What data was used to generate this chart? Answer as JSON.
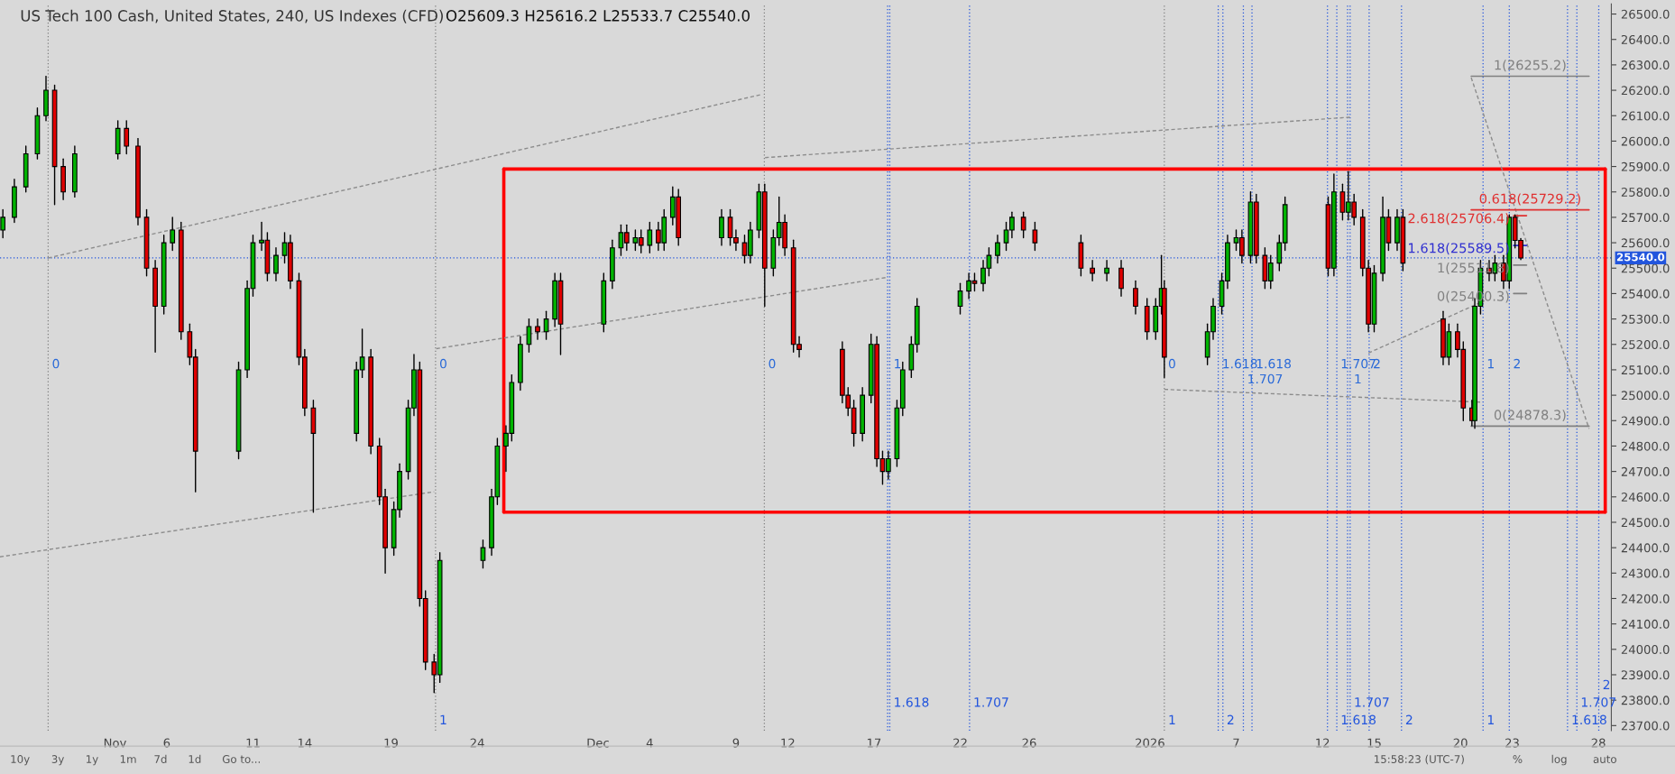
{
  "chart_data": {
    "type": "candlestick",
    "title": "US Tech 100 Cash, United States, 240, US Indexes (CFD)",
    "subtitle": "O25609.3 H25616.2 L25533.7 C25540.0",
    "x": [
      "2025-10-27T12:00",
      "2025-10-28T04:00",
      "2025-10-28T20:00",
      "2025-10-29T12:00",
      "2025-10-30T00:00",
      "2025-10-30T12:00",
      "2025-10-31T00:00",
      "2025-10-31T16:00",
      "2025-11-03T04:00",
      "2025-11-03T16:00",
      "2025-11-04T08:00",
      "2025-11-04T20:00",
      "2025-11-05T08:00",
      "2025-11-05T20:00",
      "2025-11-06T08:00",
      "2025-11-06T20:00",
      "2025-11-07T08:00",
      "2025-11-07T16:00",
      "2025-11-10T04:00",
      "2025-11-10T16:00",
      "2025-11-11T00:00",
      "2025-11-11T12:00",
      "2025-11-11T20:00",
      "2025-11-12T08:00",
      "2025-11-12T20:00",
      "2025-11-13T04:00",
      "2025-11-13T16:00",
      "2025-11-14T00:00",
      "2025-11-14T12:00",
      "2025-11-17T00:00",
      "2025-11-17T08:00",
      "2025-11-17T20:00",
      "2025-11-18T08:00",
      "2025-11-18T16:00",
      "2025-11-19T04:00",
      "2025-11-19T12:00",
      "2025-11-20T00:00",
      "2025-11-20T08:00",
      "2025-11-20T16:00",
      "2025-11-21T00:00",
      "2025-11-21T12:00",
      "2025-11-21T20:00",
      "2025-11-24T08:00",
      "2025-11-24T20:00",
      "2025-11-25T04:00",
      "2025-11-25T16:00",
      "2025-11-26T00:00",
      "2025-11-26T12:00",
      "2025-11-27T00:00",
      "2025-11-27T12:00",
      "2025-11-28T00:00",
      "2025-11-28T12:00",
      "2025-11-28T20:00",
      "2025-12-01T08:00",
      "2025-12-01T20:00",
      "2025-12-02T08:00",
      "2025-12-02T16:00",
      "2025-12-03T04:00",
      "2025-12-03T12:00",
      "2025-12-04T00:00",
      "2025-12-04T12:00",
      "2025-12-04T20:00",
      "2025-12-05T08:00",
      "2025-12-05T16:00",
      "2025-12-08T04:00",
      "2025-12-08T16:00",
      "2025-12-09T00:00",
      "2025-12-09T12:00",
      "2025-12-09T20:00",
      "2025-12-10T08:00",
      "2025-12-10T16:00",
      "2025-12-11T04:00",
      "2025-12-11T12:00",
      "2025-12-11T20:00",
      "2025-12-12T08:00",
      "2025-12-12T16:00",
      "2025-12-15T04:00",
      "2025-12-15T12:00",
      "2025-12-15T20:00",
      "2025-12-16T08:00",
      "2025-12-16T20:00",
      "2025-12-17T04:00",
      "2025-12-17T12:00",
      "2025-12-17T20:00",
      "2025-12-18T08:00",
      "2025-12-18T16:00",
      "2025-12-19T04:00",
      "2025-12-19T12:00",
      "2025-12-22T00:00",
      "2025-12-22T12:00",
      "2025-12-22T20:00",
      "2025-12-23T08:00",
      "2025-12-23T16:00",
      "2025-12-24T04:00",
      "2025-12-24T16:00",
      "2025-12-25T00:00",
      "2025-12-25T16:00",
      "2025-12-26T08:00",
      "2025-12-29T00:00",
      "2025-12-29T16:00",
      "2025-12-30T12:00",
      "2025-12-31T08:00",
      "2026-01-01T04:00",
      "2026-01-01T20:00",
      "2026-01-02T08:00",
      "2026-01-02T16:00",
      "2026-01-02T20:00",
      "2026-01-05T08:00",
      "2026-01-05T16:00",
      "2026-01-06T04:00",
      "2026-01-06T12:00",
      "2026-01-07T00:00",
      "2026-01-07T08:00",
      "2026-01-07T20:00",
      "2026-01-08T04:00",
      "2026-01-08T16:00",
      "2026-01-09T00:00",
      "2026-01-09T12:00",
      "2026-01-09T20:00",
      "2026-01-12T08:00",
      "2026-01-12T16:00",
      "2026-01-13T04:00",
      "2026-01-13T12:00",
      "2026-01-13T20:00",
      "2026-01-14T08:00",
      "2026-01-14T16:00",
      "2026-01-15T00:00",
      "2026-01-15T12:00",
      "2026-01-15T20:00",
      "2026-01-16T08:00",
      "2026-01-16T16:00",
      "2026-01-19T00:00",
      "2026-01-19T08:00",
      "2026-01-19T20:00",
      "2026-01-20T04:00",
      "2026-01-20T16:00",
      "2026-01-20T20:00",
      "2026-01-21T04:00",
      "2026-01-21T16:00",
      "2026-01-22T00:00",
      "2026-01-22T12:00",
      "2026-01-22T20:00",
      "2026-01-23T04:00",
      "2026-01-23T12:00"
    ],
    "ohlc": [
      [
        25650,
        25730,
        25620,
        25700
      ],
      [
        25700,
        25850,
        25680,
        25820
      ],
      [
        25820,
        25980,
        25800,
        25950
      ],
      [
        25950,
        26130,
        25930,
        26100
      ],
      [
        26100,
        26255,
        26080,
        26200
      ],
      [
        26200,
        26220,
        25750,
        25900
      ],
      [
        25900,
        25930,
        25770,
        25800
      ],
      [
        25800,
        25980,
        25780,
        25950
      ],
      [
        25950,
        26080,
        25930,
        26050
      ],
      [
        26050,
        26080,
        25950,
        25980
      ],
      [
        25980,
        26010,
        25670,
        25700
      ],
      [
        25700,
        25730,
        25470,
        25500
      ],
      [
        25500,
        25530,
        25170,
        25350
      ],
      [
        25350,
        25630,
        25320,
        25600
      ],
      [
        25600,
        25700,
        25570,
        25650
      ],
      [
        25650,
        25680,
        25220,
        25250
      ],
      [
        25250,
        25280,
        25120,
        25150
      ],
      [
        25150,
        25180,
        24620,
        24780
      ],
      [
        24780,
        25130,
        24750,
        25100
      ],
      [
        25100,
        25450,
        25070,
        25420
      ],
      [
        25420,
        25630,
        25390,
        25600
      ],
      [
        25600,
        25680,
        25570,
        25610
      ],
      [
        25610,
        25640,
        25450,
        25480
      ],
      [
        25480,
        25580,
        25450,
        25550
      ],
      [
        25550,
        25640,
        25520,
        25600
      ],
      [
        25600,
        25630,
        25420,
        25450
      ],
      [
        25450,
        25480,
        25120,
        25150
      ],
      [
        25150,
        25180,
        24920,
        24950
      ],
      [
        24950,
        24980,
        24540,
        24850
      ],
      [
        24850,
        25130,
        24820,
        25100
      ],
      [
        25100,
        25260,
        25070,
        25150
      ],
      [
        25150,
        25180,
        24770,
        24800
      ],
      [
        24800,
        24830,
        24570,
        24600
      ],
      [
        24600,
        24630,
        24300,
        24400
      ],
      [
        24400,
        24580,
        24370,
        24550
      ],
      [
        24550,
        24730,
        24520,
        24700
      ],
      [
        24700,
        24980,
        24670,
        24950
      ],
      [
        24950,
        25160,
        24920,
        25100
      ],
      [
        25100,
        25130,
        24170,
        24200
      ],
      [
        24200,
        24230,
        23920,
        23950
      ],
      [
        23950,
        23980,
        23830,
        23900
      ],
      [
        23900,
        24380,
        23870,
        24350
      ],
      [
        24350,
        24430,
        24320,
        24400
      ],
      [
        24400,
        24630,
        24370,
        24600
      ],
      [
        24600,
        24830,
        24570,
        24800
      ],
      [
        24800,
        24880,
        24700,
        24850
      ],
      [
        24850,
        25080,
        24820,
        25050
      ],
      [
        25050,
        25230,
        25020,
        25200
      ],
      [
        25200,
        25300,
        25170,
        25270
      ],
      [
        25270,
        25300,
        25220,
        25250
      ],
      [
        25250,
        25330,
        25220,
        25300
      ],
      [
        25300,
        25480,
        25270,
        25450
      ],
      [
        25450,
        25480,
        25160,
        25280
      ],
      [
        25280,
        25480,
        25250,
        25450
      ],
      [
        25450,
        25610,
        25420,
        25580
      ],
      [
        25580,
        25670,
        25550,
        25640
      ],
      [
        25640,
        25670,
        25570,
        25600
      ],
      [
        25600,
        25650,
        25570,
        25620
      ],
      [
        25620,
        25650,
        25560,
        25590
      ],
      [
        25590,
        25680,
        25560,
        25650
      ],
      [
        25650,
        25680,
        25570,
        25600
      ],
      [
        25600,
        25730,
        25570,
        25700
      ],
      [
        25700,
        25820,
        25670,
        25780
      ],
      [
        25780,
        25810,
        25590,
        25620
      ],
      [
        25620,
        25730,
        25590,
        25700
      ],
      [
        25700,
        25730,
        25590,
        25620
      ],
      [
        25620,
        25650,
        25570,
        25600
      ],
      [
        25600,
        25630,
        25520,
        25550
      ],
      [
        25550,
        25680,
        25520,
        25650
      ],
      [
        25650,
        25830,
        25620,
        25800
      ],
      [
        25800,
        25830,
        25350,
        25500
      ],
      [
        25500,
        25650,
        25470,
        25620
      ],
      [
        25620,
        25780,
        25590,
        25680
      ],
      [
        25680,
        25710,
        25550,
        25580
      ],
      [
        25580,
        25610,
        25170,
        25200
      ],
      [
        25200,
        25230,
        25150,
        25180
      ],
      [
        25180,
        25210,
        24970,
        25000
      ],
      [
        25000,
        25030,
        24920,
        24950
      ],
      [
        24950,
        24980,
        24800,
        24850
      ],
      [
        24850,
        25030,
        24820,
        25000
      ],
      [
        25000,
        25240,
        24970,
        25200
      ],
      [
        25200,
        25230,
        24720,
        24750
      ],
      [
        24750,
        24780,
        24650,
        24700
      ],
      [
        24700,
        24780,
        24670,
        24750
      ],
      [
        24750,
        24980,
        24720,
        24950
      ],
      [
        24950,
        25130,
        24920,
        25100
      ],
      [
        25100,
        25230,
        25070,
        25200
      ],
      [
        25200,
        25380,
        25170,
        25350
      ],
      [
        25350,
        25440,
        25320,
        25410
      ],
      [
        25410,
        25480,
        25380,
        25450
      ],
      [
        25450,
        25480,
        25410,
        25440
      ],
      [
        25440,
        25530,
        25410,
        25500
      ],
      [
        25500,
        25580,
        25470,
        25550
      ],
      [
        25550,
        25630,
        25520,
        25600
      ],
      [
        25600,
        25680,
        25570,
        25650
      ],
      [
        25650,
        25720,
        25620,
        25700
      ],
      [
        25700,
        25720,
        25620,
        25650
      ],
      [
        25650,
        25680,
        25570,
        25600
      ],
      [
        25600,
        25630,
        25470,
        25500
      ],
      [
        25500,
        25530,
        25450,
        25480
      ],
      [
        25480,
        25530,
        25450,
        25500
      ],
      [
        25500,
        25530,
        25390,
        25420
      ],
      [
        25420,
        25450,
        25320,
        25350
      ],
      [
        25350,
        25380,
        25220,
        25250
      ],
      [
        25250,
        25380,
        25220,
        25350
      ],
      [
        25350,
        25550,
        25320,
        25420
      ],
      [
        25420,
        25450,
        25070,
        25150
      ],
      [
        25150,
        25280,
        25120,
        25250
      ],
      [
        25250,
        25380,
        25220,
        25350
      ],
      [
        25350,
        25480,
        25320,
        25450
      ],
      [
        25450,
        25630,
        25420,
        25600
      ],
      [
        25600,
        25650,
        25570,
        25620
      ],
      [
        25620,
        25650,
        25520,
        25550
      ],
      [
        25550,
        25800,
        25520,
        25760
      ],
      [
        25760,
        25790,
        25520,
        25550
      ],
      [
        25550,
        25580,
        25420,
        25450
      ],
      [
        25450,
        25550,
        25420,
        25520
      ],
      [
        25520,
        25630,
        25490,
        25600
      ],
      [
        25600,
        25780,
        25570,
        25750
      ],
      [
        25750,
        25780,
        25470,
        25500
      ],
      [
        25500,
        25870,
        25470,
        25800
      ],
      [
        25800,
        25830,
        25690,
        25720
      ],
      [
        25720,
        25880,
        25690,
        25760
      ],
      [
        25760,
        25790,
        25670,
        25700
      ],
      [
        25700,
        25730,
        25470,
        25500
      ],
      [
        25500,
        25530,
        25250,
        25280
      ],
      [
        25280,
        25510,
        25250,
        25480
      ],
      [
        25480,
        25780,
        25450,
        25700
      ],
      [
        25700,
        25730,
        25570,
        25600
      ],
      [
        25600,
        25730,
        25570,
        25700
      ],
      [
        25700,
        25730,
        25490,
        25520
      ],
      [
        25300,
        25330,
        25120,
        25150
      ],
      [
        25150,
        25280,
        25120,
        25250
      ],
      [
        25250,
        25280,
        25150,
        25180
      ],
      [
        25180,
        25210,
        24900,
        24950
      ],
      [
        24950,
        24980,
        24880,
        24900
      ],
      [
        24900,
        25380,
        24870,
        25350
      ],
      [
        25350,
        25530,
        25320,
        25500
      ],
      [
        25500,
        25530,
        25450,
        25480
      ],
      [
        25480,
        25550,
        25450,
        25520
      ],
      [
        25520,
        25550,
        25420,
        25450
      ],
      [
        25450,
        25710,
        25420,
        25700
      ],
      [
        25700,
        25710,
        25580,
        25609.3
      ],
      [
        25609.3,
        25616.2,
        25533.7,
        25540.0
      ]
    ],
    "series": [
      {
        "type": "line",
        "color": "#ff0000",
        "line_style": "solid",
        "x": [
          "2025-11-25T13:00",
          "2026-01-28T09:30"
        ],
        "values": [
          25890,
          25890
        ]
      },
      {
        "type": "line",
        "color": "#ff0000",
        "line_style": "solid",
        "x": [
          "2025-11-25T13:00",
          "2026-01-28T09:30"
        ],
        "values": [
          24540,
          24540
        ]
      },
      {
        "type": "line",
        "color": "#ff0000",
        "line_style": "solid",
        "x": [
          "2025-11-25T13:00",
          "2025-11-25T13:00"
        ],
        "values": [
          24540,
          25890
        ]
      },
      {
        "type": "line",
        "color": "#ff0000",
        "line_style": "solid",
        "x": [
          "2026-01-28T09:30",
          "2026-01-28T09:30"
        ],
        "values": [
          24540,
          25890
        ]
      },
      {
        "type": "line",
        "color": "#8c8c8c",
        "line_style": "dashed",
        "x": [
          "2025-10-27T08:00",
          "2025-11-21T12:00"
        ],
        "values": [
          24364,
          24620
        ]
      },
      {
        "type": "line",
        "color": "#8c8c8c",
        "line_style": "dashed",
        "x": [
          "2025-10-30T03:00",
          "2025-12-10T11:00"
        ],
        "values": [
          25540,
          26183
        ]
      },
      {
        "type": "line",
        "color": "#8c8c8c",
        "line_style": "dashed",
        "x": [
          "2025-11-21T15:00",
          "2025-12-17T19:00"
        ],
        "values": [
          25183,
          25464
        ]
      },
      {
        "type": "line",
        "color": "#8c8c8c",
        "line_style": "dashed",
        "x": [
          "2025-12-10T16:30",
          "2026-01-13T14:30"
        ],
        "values": [
          25935,
          26094
        ]
      },
      {
        "type": "line",
        "color": "#8c8c8c",
        "line_style": "dashed",
        "x": [
          "2026-01-14T16:00",
          "2026-01-21T09:30"
        ],
        "values": [
          25166,
          25372
        ]
      },
      {
        "type": "line",
        "color": "#8c8c8c",
        "line_style": "dashed",
        "x": [
          "2026-01-02T20:00",
          "2026-01-21T03:30"
        ],
        "values": [
          25023,
          24973
        ]
      },
      {
        "type": "line",
        "color": "#8c8c8c",
        "line_style": "dashed",
        "x": [
          "2026-01-20T15:00",
          "2026-01-27T11:00"
        ],
        "values": [
          26250,
          24868
        ]
      },
      {
        "type": "line",
        "name": "1(26255.2)",
        "color": "#808080",
        "line_style": "solid",
        "x": [
          "2026-01-20T15:00",
          "2026-01-27T11:00"
        ],
        "values": [
          26255.2,
          26255.2
        ]
      },
      {
        "type": "line",
        "name": "0.618(25729.2)",
        "color": "#e03030",
        "line_style": "solid",
        "x": [
          "2026-01-20T15:00",
          "2026-01-27T11:00"
        ],
        "values": [
          25729.2,
          25729.2
        ]
      },
      {
        "type": "line",
        "name": "2.618(25706.4)",
        "color": "#e03030",
        "line_style": "solid",
        "x": [
          "2026-01-23T02:00",
          "2026-01-23T20:00"
        ],
        "values": [
          25706.4,
          25706.4
        ]
      },
      {
        "type": "line",
        "name": "1.618(25589.5)",
        "color": "#3030d0",
        "line_style": "solid",
        "x": [
          "2026-01-23T02:00",
          "2026-01-23T20:00"
        ],
        "values": [
          25589.5,
          25589.5
        ]
      },
      {
        "type": "line",
        "name": "1(25511.8)",
        "color": "#808080",
        "line_style": "solid",
        "x": [
          "2026-01-23T02:00",
          "2026-01-23T20:00"
        ],
        "values": [
          25511.8,
          25511.8
        ]
      },
      {
        "type": "line",
        "name": "0(25400.3)",
        "color": "#808080",
        "line_style": "solid",
        "x": [
          "2026-01-23T02:00",
          "2026-01-23T20:00"
        ],
        "values": [
          25400.3,
          25400.3
        ]
      },
      {
        "type": "line",
        "name": "0(24878.3)",
        "color": "#808080",
        "line_style": "solid",
        "x": [
          "2026-01-20T15:00",
          "2026-01-27T11:00"
        ],
        "values": [
          24878.3,
          24878.3
        ]
      }
    ],
    "ref_lines": [
      {
        "axis": "y",
        "value": 25540,
        "label": "25540.0",
        "color": "#2255dd",
        "line_style": "dotted"
      },
      {
        "axis": "x",
        "value": "2025-10-30T03:00",
        "label": null,
        "color": "#808080",
        "line_style": "dotted"
      },
      {
        "axis": "x",
        "value": "2025-11-21T14:00",
        "label": "1",
        "color": "#808080",
        "line_style": "dotted"
      },
      {
        "axis": "x",
        "value": "2025-12-10T15:30",
        "label": null,
        "color": "#808080",
        "line_style": "dotted"
      },
      {
        "axis": "x",
        "value": "2026-01-02T20:00",
        "label": "1",
        "color": "#808080",
        "line_style": "dotted"
      },
      {
        "axis": "x",
        "value": "2025-12-17T19:00",
        "label": null,
        "color": "#2255dd",
        "line_style": "dotted"
      },
      {
        "axis": "x",
        "value": "2025-12-17T22:00",
        "label": "1.618",
        "color": "#2255dd",
        "line_style": "dotted"
      },
      {
        "axis": "x",
        "value": "2025-12-22T13:00",
        "label": "1.707",
        "color": "#2255dd",
        "line_style": "dotted"
      },
      {
        "axis": "x",
        "value": "2026-01-05T23:00",
        "label": null,
        "color": "#2255dd",
        "line_style": "dotted"
      },
      {
        "axis": "x",
        "value": "2026-01-06T05:30",
        "label": "2",
        "color": "#2255dd",
        "line_style": "dotted"
      },
      {
        "axis": "x",
        "value": "2026-01-07T10:00",
        "label": null,
        "color": "#2255dd",
        "line_style": "dotted"
      },
      {
        "axis": "x",
        "value": "2026-01-07T22:00",
        "label": null,
        "color": "#2255dd",
        "line_style": "dotted"
      },
      {
        "axis": "x",
        "value": "2026-01-12T07:00",
        "label": null,
        "color": "#2255dd",
        "line_style": "dotted"
      },
      {
        "axis": "x",
        "value": "2026-01-12T20:00",
        "label": "1.618",
        "color": "#2255dd",
        "line_style": "dotted"
      },
      {
        "axis": "x",
        "value": "2026-01-13T11:00",
        "label": null,
        "color": "#2255dd",
        "line_style": "dotted"
      },
      {
        "axis": "x",
        "value": "2026-01-13T14:30",
        "label": "1.707",
        "color": "#2255dd",
        "line_style": "dotted"
      },
      {
        "axis": "x",
        "value": "2026-01-14T17:00",
        "label": null,
        "color": "#2255dd",
        "line_style": "dotted"
      },
      {
        "axis": "x",
        "value": "2026-01-16T14:00",
        "label": "2",
        "color": "#2255dd",
        "line_style": "dotted"
      },
      {
        "axis": "x",
        "value": "2026-01-21T07:30",
        "label": "1",
        "color": "#2255dd",
        "line_style": "dotted"
      },
      {
        "axis": "x",
        "value": "2026-01-22T20:00",
        "label": null,
        "color": "#2255dd",
        "line_style": "dotted"
      },
      {
        "axis": "x",
        "value": "2026-01-26T05:00",
        "label": "1.618",
        "color": "#2255dd",
        "line_style": "dotted"
      },
      {
        "axis": "x",
        "value": "2026-01-26T18:00",
        "label": "1.707",
        "color": "#2255dd",
        "line_style": "dotted"
      },
      {
        "axis": "x",
        "value": "2026-01-28T00:30",
        "label": "2",
        "color": "#2255dd",
        "line_style": "dotted"
      }
    ],
    "annotations": [
      {
        "text": "0",
        "x": "2025-10-30T03:00",
        "y": 25120
      },
      {
        "text": "0",
        "x": "2025-11-21T14:00",
        "y": 25120
      },
      {
        "text": "0",
        "x": "2025-12-10T15:30",
        "y": 25120
      },
      {
        "text": "1",
        "x": "2025-12-17T22:00",
        "y": 25120
      },
      {
        "text": "0",
        "x": "2026-01-02T20:00",
        "y": 25120
      },
      {
        "text": "1.618",
        "x": "2026-01-05T23:00",
        "y": 25120
      },
      {
        "text": "1.707",
        "x": "2026-01-07T10:00",
        "y": 25060
      },
      {
        "text": "1.618",
        "x": "2026-01-07T22:00",
        "y": 25120
      },
      {
        "text": "1.707",
        "x": "2026-01-12T20:00",
        "y": 25120
      },
      {
        "text": "1",
        "x": "2026-01-13T14:30",
        "y": 25060
      },
      {
        "text": "2",
        "x": "2026-01-14T17:00",
        "y": 25120
      },
      {
        "text": "1",
        "x": "2026-01-21T07:30",
        "y": 25120
      },
      {
        "text": "2",
        "x": "2026-01-22T20:00",
        "y": 25120
      },
      "10y",
      "3y",
      "1y",
      "1m",
      "7d",
      "1d",
      "Go to...",
      "15:58:23 (UTC-7)",
      "%",
      "log",
      "auto"
    ],
    "xlim": [
      "2025-10-27T08:00",
      "2026-01-28T18:00"
    ],
    "xticks": [
      {
        "value": "2025-11-03",
        "label": "Nov"
      },
      {
        "value": "2025-11-06",
        "label": "6"
      },
      {
        "value": "2025-11-11",
        "label": "11"
      },
      {
        "value": "2025-11-14",
        "label": "14"
      },
      {
        "value": "2025-11-19",
        "label": "19"
      },
      {
        "value": "2025-11-24",
        "label": "24"
      },
      {
        "value": "2025-12-01",
        "label": "Dec"
      },
      {
        "value": "2025-12-04",
        "label": "4"
      },
      {
        "value": "2025-12-09",
        "label": "9"
      },
      {
        "value": "2025-12-12",
        "label": "12"
      },
      {
        "value": "2025-12-17",
        "label": "17"
      },
      {
        "value": "2025-12-22",
        "label": "22"
      },
      {
        "value": "2025-12-26",
        "label": "26"
      },
      {
        "value": "2026-01-02",
        "label": "2026"
      },
      {
        "value": "2026-01-07",
        "label": "7"
      },
      {
        "value": "2026-01-12",
        "label": "12"
      },
      {
        "value": "2026-01-15",
        "label": "15"
      },
      {
        "value": "2026-01-20",
        "label": "20"
      },
      {
        "value": "2026-01-23",
        "label": "23"
      },
      {
        "value": "2026-01-28",
        "label": "28"
      }
    ],
    "ylim": [
      23680,
      26540
    ],
    "yticks": [
      {
        "value": 23700,
        "label": "23700.0"
      },
      {
        "value": 23800,
        "label": "23800.0"
      },
      {
        "value": 23900,
        "label": "23900.0"
      },
      {
        "value": 24000,
        "label": "24000.0"
      },
      {
        "value": 24100,
        "label": "24100.0"
      },
      {
        "value": 24200,
        "label": "24200.0"
      },
      {
        "value": 24300,
        "label": "24300.0"
      },
      {
        "value": 24400,
        "label": "24400.0"
      },
      {
        "value": 24500,
        "label": "24500.0"
      },
      {
        "value": 24600,
        "label": "24600.0"
      },
      {
        "value": 24700,
        "label": "24700.0"
      },
      {
        "value": 24800,
        "label": "24800.0"
      },
      {
        "value": 24900,
        "label": "24900.0"
      },
      {
        "value": 25000,
        "label": "25000.0"
      },
      {
        "value": 25100,
        "label": "25100.0"
      },
      {
        "value": 25200,
        "label": "25200.0"
      },
      {
        "value": 25300,
        "label": "25300.0"
      },
      {
        "value": 25400,
        "label": "25400.0"
      },
      {
        "value": 25500,
        "label": "25500.0"
      },
      {
        "value": 25600,
        "label": "25600.0"
      },
      {
        "value": 25700,
        "label": "25700.0"
      },
      {
        "value": 25800,
        "label": "25800.0"
      },
      {
        "value": 25900,
        "label": "25900.0"
      },
      {
        "value": 26000,
        "label": "26000.0"
      },
      {
        "value": 26100,
        "label": "26100.0"
      },
      {
        "value": 26200,
        "label": "26200.0"
      },
      {
        "value": 26300,
        "label": "26300.0"
      },
      {
        "value": 26400,
        "label": "26400.0"
      },
      {
        "value": 26500,
        "label": "26500.0"
      }
    ],
    "grid": false
  }
}
